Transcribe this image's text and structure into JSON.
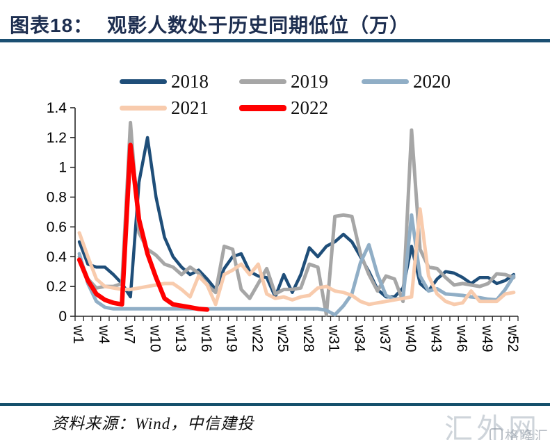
{
  "header": {
    "figure_label": "图表18：",
    "title": "观影人数处于历史同期低位（万）"
  },
  "footer": {
    "source_text": "资料来源：Wind，中信建投"
  },
  "watermarks": {
    "primary": "汇外网",
    "secondary": "格隆汇"
  },
  "chart_data": {
    "type": "line",
    "title": "观影人数处于历史同期低位（万）",
    "unit": "万",
    "ylim": [
      0,
      1.4
    ],
    "grid": false,
    "legend_position": "top",
    "y_ticks": [
      {
        "v": 0,
        "label": "0"
      },
      {
        "v": 0.2,
        "label": "0.2"
      },
      {
        "v": 0.4,
        "label": "0.4"
      },
      {
        "v": 0.6,
        "label": "0.6"
      },
      {
        "v": 0.8,
        "label": "0.8"
      },
      {
        "v": 1,
        "label": "1"
      },
      {
        "v": 1.2,
        "label": "1.2"
      },
      {
        "v": 1.4,
        "label": "1.4"
      }
    ],
    "x_categories_count": 52,
    "x_tick_labels": [
      "w1",
      "w4",
      "w7",
      "w10",
      "w13",
      "w16",
      "w19",
      "w22",
      "w25",
      "w28",
      "w31",
      "w34",
      "w37",
      "w40",
      "w43",
      "w46",
      "w49",
      "w52"
    ],
    "series": [
      {
        "name": "2018",
        "color": "#1F4E79",
        "values": [
          0.5,
          0.35,
          0.33,
          0.33,
          0.28,
          0.22,
          0.13,
          0.9,
          1.2,
          0.8,
          0.53,
          0.4,
          0.33,
          0.28,
          0.31,
          0.25,
          0.18,
          0.32,
          0.4,
          0.42,
          0.3,
          0.27,
          0.26,
          0.13,
          0.28,
          0.16,
          0.28,
          0.46,
          0.4,
          0.47,
          0.5,
          0.55,
          0.5,
          0.4,
          0.3,
          0.18,
          0.13,
          0.13,
          0.19,
          0.47,
          0.22,
          0.17,
          0.25,
          0.3,
          0.29,
          0.26,
          0.22,
          0.26,
          0.26,
          0.22,
          0.24,
          0.28
        ]
      },
      {
        "name": "2019",
        "color": "#A6A6A6",
        "values": [
          0.4,
          0.25,
          0.19,
          0.2,
          0.2,
          0.22,
          1.3,
          0.56,
          0.45,
          0.41,
          0.35,
          0.33,
          0.28,
          0.33,
          0.29,
          0.21,
          0.16,
          0.47,
          0.45,
          0.18,
          0.12,
          0.22,
          0.32,
          0.15,
          0.18,
          0.18,
          0.19,
          0.35,
          0.33,
          0.01,
          0.67,
          0.68,
          0.67,
          0.42,
          0.28,
          0.17,
          0.27,
          0.25,
          0.1,
          1.25,
          0.45,
          0.33,
          0.32,
          0.26,
          0.21,
          0.22,
          0.21,
          0.2,
          0.22,
          0.285,
          0.28,
          0.26
        ]
      },
      {
        "name": "2020",
        "color": "#90AEC6",
        "values": [
          0.42,
          0.22,
          0.1,
          0.06,
          0.05,
          0.05,
          0.05,
          0.05,
          0.05,
          0.05,
          0.05,
          0.05,
          0.05,
          0.05,
          0.05,
          0.05,
          0.05,
          0.05,
          0.05,
          0.05,
          0.05,
          0.05,
          0.05,
          0.05,
          0.05,
          0.05,
          0.05,
          0.05,
          0.05,
          0.04,
          0.01,
          0.07,
          0.15,
          0.36,
          0.48,
          0.28,
          0.14,
          0.115,
          0.12,
          0.68,
          0.27,
          0.17,
          0.185,
          0.15,
          0.145,
          0.14,
          0.13,
          0.125,
          0.115,
          0.11,
          0.18,
          0.27
        ]
      },
      {
        "name": "2021",
        "color": "#F8CBAD",
        "values": [
          0.56,
          0.4,
          0.25,
          0.2,
          0.19,
          0.18,
          0.18,
          0.19,
          0.2,
          0.21,
          0.22,
          0.22,
          0.18,
          0.13,
          0.27,
          0.21,
          0.08,
          0.28,
          0.31,
          0.35,
          0.28,
          0.35,
          0.15,
          0.12,
          0.13,
          0.11,
          0.13,
          0.14,
          0.19,
          0.2,
          0.17,
          0.16,
          0.14,
          0.1,
          0.08,
          0.09,
          0.1,
          0.11,
          0.12,
          0.13,
          0.72,
          0.27,
          0.15,
          0.1,
          0.08,
          0.09,
          0.17,
          0.1,
          0.1,
          0.1,
          0.15,
          0.16
        ]
      },
      {
        "name": "2022",
        "color": "#FF0000",
        "values": [
          0.38,
          0.24,
          0.15,
          0.11,
          0.09,
          0.08,
          1.15,
          0.65,
          0.42,
          0.26,
          0.12,
          0.08,
          0.07,
          0.06,
          0.05,
          0.045
        ]
      }
    ]
  }
}
